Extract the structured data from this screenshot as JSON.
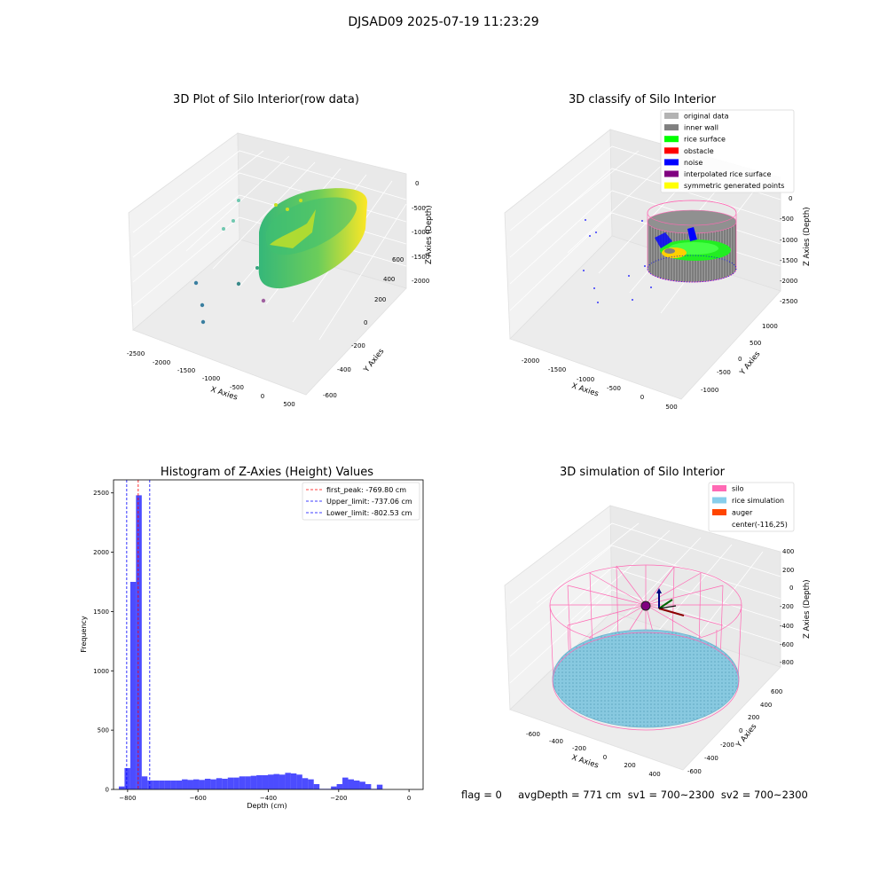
{
  "page": {
    "suptitle": "DJSAD09 2025-07-19 11:23:29"
  },
  "panels": {
    "raw": {
      "title": "3D Plot of Silo Interior(row data)",
      "xlabel": "X Axies",
      "ylabel": "Y Axies",
      "zlabel": "Z Axies (Depth)",
      "xticks": [
        "-2500",
        "-2000",
        "-1500",
        "-1000",
        "-500",
        "0",
        "500"
      ],
      "yticks": [
        "-600",
        "-400",
        "-200",
        "0",
        "200",
        "400",
        "600"
      ],
      "zticks": [
        "0",
        "-500",
        "-1000",
        "-1500",
        "-2000"
      ]
    },
    "classify": {
      "title": "3D classify of Silo Interior",
      "xlabel": "X Axies",
      "ylabel": "Y Axies",
      "zlabel": "Z Axies (Depth)",
      "xticks": [
        "-2000",
        "-1500",
        "-1000",
        "-500",
        "0",
        "500"
      ],
      "yticks": [
        "-1000",
        "-500",
        "0",
        "500",
        "1000"
      ],
      "zticks": [
        "0",
        "-500",
        "-1000",
        "-1500",
        "-2000",
        "-2500"
      ],
      "legend": [
        {
          "label": "original data",
          "color": "#b3b3b3"
        },
        {
          "label": "inner wall",
          "color": "#808080"
        },
        {
          "label": "rice surface",
          "color": "#00ff00"
        },
        {
          "label": "obstacle",
          "color": "#ff0000"
        },
        {
          "label": "noise",
          "color": "#0000ff"
        },
        {
          "label": "interpolated rice surface",
          "color": "#800080"
        },
        {
          "label": "symmetric generated points",
          "color": "#ffff00"
        }
      ]
    },
    "simulation": {
      "title": "3D simulation of Silo Interior",
      "xlabel": "X Axies",
      "ylabel": "Y Axies",
      "zlabel": "Z Axies (Depth)",
      "xticks": [
        "-600",
        "-400",
        "-200",
        "0",
        "200",
        "400"
      ],
      "yticks": [
        "-600",
        "-400",
        "-200",
        "0",
        "200",
        "400",
        "600"
      ],
      "zticks": [
        "400",
        "200",
        "0",
        "-200",
        "-400",
        "-600",
        "-800"
      ],
      "legend": [
        {
          "label": "silo",
          "color": "#ff69b4",
          "swatch": true
        },
        {
          "label": "rice simulation",
          "color": "#87ceeb",
          "swatch": true
        },
        {
          "label": "auger",
          "color": "#ff4500",
          "swatch": true
        },
        {
          "label": "center(-116,25)",
          "color": "#ffffff",
          "swatch": false
        }
      ]
    }
  },
  "footer": {
    "text": "flag = 0     avgDepth = 771 cm  sv1 = 700~2300  sv2 = 700~2300"
  },
  "chart_data": [
    {
      "type": "bar",
      "title": "Histogram of Z-Axies (Height) Values",
      "xlabel": "Depth (cm)",
      "ylabel": "Frequency",
      "xlim": [
        -840,
        40
      ],
      "ylim": [
        0,
        2610
      ],
      "xticks": [
        -800,
        -600,
        -400,
        -200,
        0
      ],
      "yticks": [
        0,
        500,
        1000,
        1500,
        2000,
        2500
      ],
      "bin_start": -825,
      "bin_width": 16.3,
      "bar_color": "#0000ff",
      "counts": [
        25,
        180,
        1750,
        2480,
        110,
        75,
        75,
        75,
        75,
        75,
        75,
        85,
        80,
        85,
        80,
        90,
        85,
        95,
        90,
        100,
        100,
        110,
        110,
        115,
        120,
        120,
        125,
        130,
        125,
        140,
        135,
        125,
        95,
        85,
        45,
        5,
        5,
        25,
        45,
        100,
        85,
        75,
        65,
        45,
        5,
        40
      ],
      "vlines": [
        {
          "label": "first_peak: -769.80 cm",
          "x": -769.8,
          "color": "#ff0000"
        },
        {
          "label": "Upper_limit: -737.06 cm",
          "x": -737.06,
          "color": "#0000ff"
        },
        {
          "label": "Lower_limit: -802.53 cm",
          "x": -802.53,
          "color": "#0000ff"
        }
      ]
    }
  ]
}
